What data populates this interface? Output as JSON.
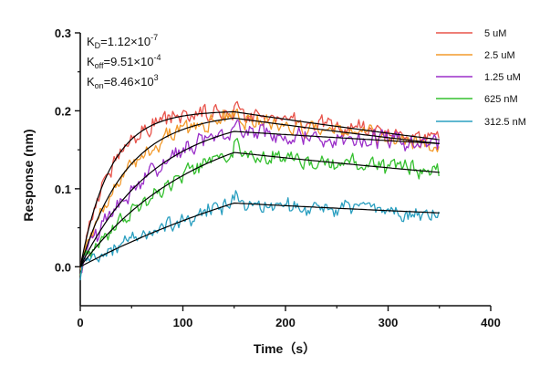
{
  "chart_data": {
    "type": "line",
    "xlabel": "Time（s）",
    "ylabel": "Response (nm)",
    "xlim": [
      0,
      400
    ],
    "ylim": [
      -0.05,
      0.3
    ],
    "xticks": [
      0,
      100,
      200,
      300,
      400
    ],
    "yticks": [
      0.0,
      0.1,
      0.2,
      0.3
    ],
    "xtick_labels": [
      "0",
      "100",
      "200",
      "300",
      "400"
    ],
    "ytick_labels": [
      "0.0",
      "0.1",
      "0.2",
      "0.3"
    ],
    "grid": false,
    "legend_position": "top-right",
    "association_end": 150,
    "dissociation_end": 350,
    "annotations": {
      "kd": {
        "prefix": "K",
        "sub": "D",
        "mid": "=1.12×10",
        "sup": "-7"
      },
      "koff": {
        "prefix": "K",
        "sub": "off",
        "mid": "=9.51×10",
        "sup": "-4"
      },
      "kon": {
        "prefix": "K",
        "sub": "on",
        "mid": "=8.46×10",
        "sup": "3"
      }
    },
    "fit_color": "#000000",
    "series": [
      {
        "name": "5 uM",
        "color": "#e8534a",
        "plateau": 0.2,
        "kobs": 0.034,
        "end": 0.163
      },
      {
        "name": "2.5 uM",
        "color": "#f39a2b",
        "plateau": 0.198,
        "kobs": 0.022,
        "end": 0.158
      },
      {
        "name": "1.25 uM",
        "color": "#9b2fc9",
        "plateau": 0.2,
        "kobs": 0.0135,
        "end": 0.158
      },
      {
        "name": "625 nM",
        "color": "#35c02f",
        "plateau": 0.2,
        "kobs": 0.0088,
        "end": 0.121
      },
      {
        "name": "312.5 nM",
        "color": "#2a9fc0",
        "plateau": 0.2,
        "kobs": 0.0035,
        "end": 0.069
      }
    ]
  }
}
